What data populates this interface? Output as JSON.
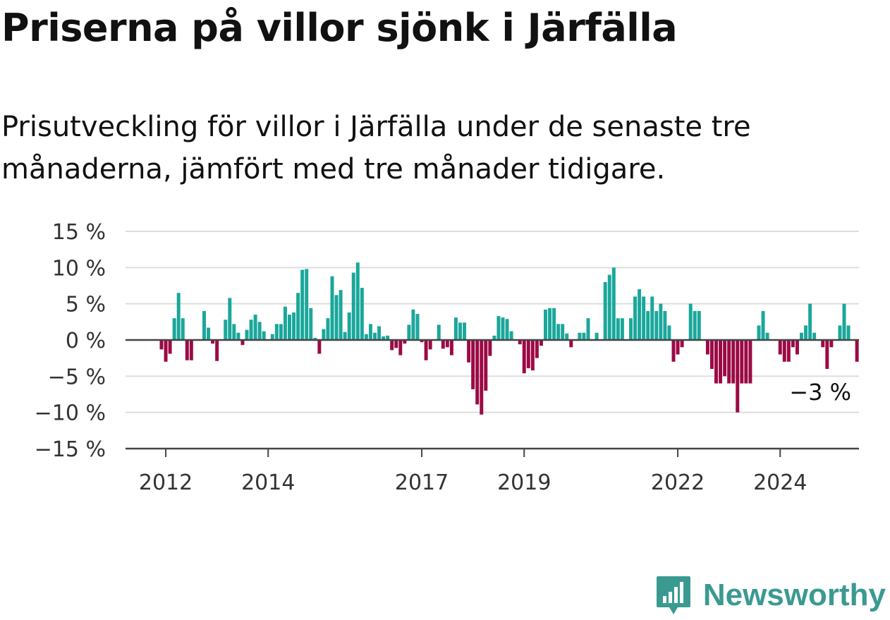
{
  "title": "Priserna på villor sjönk i Järfälla",
  "subtitle": "Prisutveckling för villor i Järfälla under de senaste tre månaderna, jämfört med tre månader tidigare.",
  "brand": {
    "name": "Newsworthy",
    "color": "#3a9a92",
    "icon": "bar-chart-bubble-icon"
  },
  "colors": {
    "positive": "#1aa79b",
    "negative": "#9b0a45",
    "grid": "#dddddd",
    "baseline": "#444444"
  },
  "chart_data": {
    "type": "bar",
    "start": "2011-12",
    "ylim": [
      -15,
      15
    ],
    "yticks": [
      15,
      10,
      5,
      0,
      -5,
      -10,
      -15
    ],
    "ytick_labels": [
      "15 %",
      "10 %",
      "5 %",
      "0 %",
      "−5 %",
      "−10 %",
      "−15 %"
    ],
    "xticks": [
      "2012",
      "2014",
      "2017",
      "2019",
      "2022",
      "2024"
    ],
    "annotation": {
      "text": "−3 %",
      "target": "last"
    },
    "values": [
      -1.3,
      -3,
      -1.9,
      3,
      6.5,
      3,
      -2.8,
      -2.8,
      0,
      0,
      4,
      1.7,
      -0.5,
      -2.9,
      0,
      2.8,
      5.8,
      2.2,
      1,
      -0.7,
      1.4,
      2.8,
      3.5,
      2.5,
      1.2,
      0,
      0.8,
      2.2,
      2.2,
      4.6,
      3.5,
      3.8,
      6.5,
      9.7,
      9.8,
      4.4,
      0.3,
      -1.9,
      1.5,
      3,
      8.8,
      6.2,
      6.9,
      1.1,
      3.8,
      9.3,
      10.7,
      7.2,
      0.8,
      2.2,
      1,
      1.9,
      0.5,
      0.6,
      -1.4,
      -1.1,
      -2.1,
      -0.5,
      2.1,
      4.2,
      3.6,
      -0.3,
      -2.8,
      -1.3,
      0,
      2.1,
      -1.2,
      -1,
      -2.1,
      3.1,
      2.4,
      2.4,
      -3.1,
      -6.8,
      -8.9,
      -10.3,
      -7,
      -2.2,
      0.6,
      3.3,
      3.1,
      2.9,
      1.2,
      0,
      -0.6,
      -4.6,
      -3.9,
      -4.2,
      -2.5,
      -0.8,
      4.2,
      4.4,
      4.4,
      2.2,
      2.2,
      0.9,
      -1,
      0,
      1,
      1,
      3,
      0,
      1,
      0,
      8,
      9,
      10,
      3,
      3,
      0,
      3,
      6,
      7,
      6,
      4,
      6,
      4,
      5,
      4,
      2,
      -3,
      -2,
      -1,
      0,
      5,
      4,
      4,
      0,
      -2,
      -4,
      -6,
      -6,
      -5,
      -6,
      -6,
      -10,
      -6,
      -6,
      -6,
      0,
      2,
      4,
      1,
      0,
      0,
      -2,
      -3,
      -3,
      -1,
      -2,
      1,
      2,
      5,
      1,
      0,
      -1,
      -4,
      -1,
      0,
      2,
      5,
      2,
      0,
      -3
    ]
  }
}
